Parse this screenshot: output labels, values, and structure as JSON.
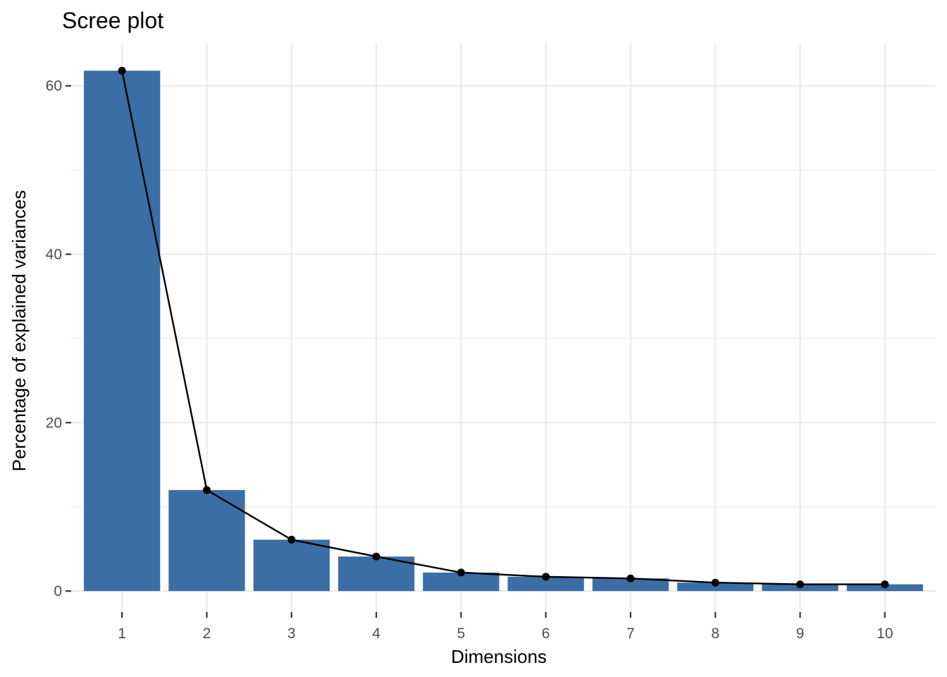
{
  "chart_data": {
    "type": "bar",
    "title": "Scree plot",
    "xlabel": "Dimensions",
    "ylabel": "Percentage of explained variances",
    "categories": [
      "1",
      "2",
      "3",
      "4",
      "5",
      "6",
      "7",
      "8",
      "9",
      "10"
    ],
    "values": [
      61.8,
      12.0,
      6.1,
      4.1,
      2.2,
      1.7,
      1.5,
      1.0,
      0.8,
      0.8
    ],
    "line_overlay": true,
    "y_ticks": [
      0,
      20,
      40,
      60
    ],
    "ylim": [
      -2.5,
      65
    ],
    "grid": true,
    "colors": {
      "bar": "#3a6ea5",
      "line": "#000000",
      "point": "#000000"
    }
  }
}
